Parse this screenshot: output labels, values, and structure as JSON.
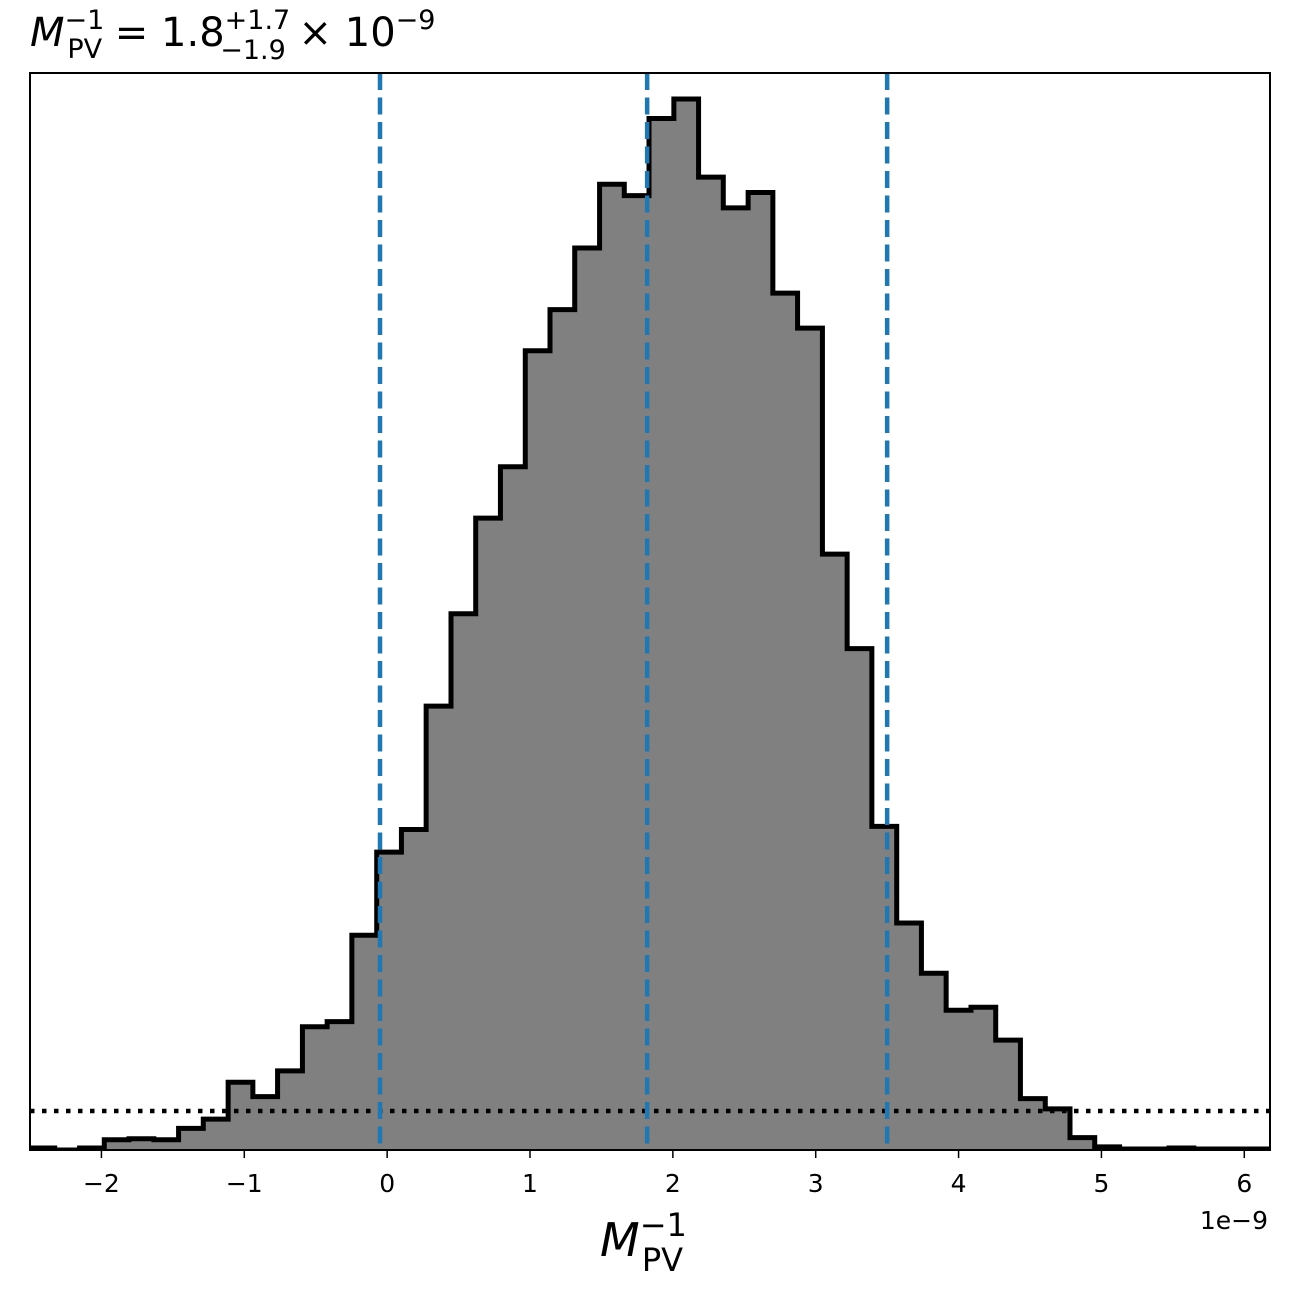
{
  "chart_data": {
    "type": "histogram",
    "title": {
      "symbol": "M",
      "symbol_sub": "PV",
      "symbol_sup": "−1",
      "eq": " = ",
      "median": "1.8",
      "err_plus": "+1.7",
      "err_minus": "−1.9",
      "times": " × 10",
      "exp": "−9"
    },
    "xlabel": {
      "symbol": "M",
      "sub": "PV",
      "sup": "−1"
    },
    "xlim": [
      -2.5,
      6.18
    ],
    "ylim": [
      0,
      1023
    ],
    "x_scale_label": "1e−9",
    "x_ticks": [
      {
        "value": -2,
        "label": "−2"
      },
      {
        "value": -1,
        "label": "−1"
      },
      {
        "value": 0,
        "label": "0"
      },
      {
        "value": 1,
        "label": "1"
      },
      {
        "value": 2,
        "label": "2"
      },
      {
        "value": 3,
        "label": "3"
      },
      {
        "value": 4,
        "label": "4"
      },
      {
        "value": 5,
        "label": "5"
      },
      {
        "value": 6,
        "label": "6"
      }
    ],
    "bin_edges": [
      -2.5,
      -2.327,
      -2.153,
      -1.98,
      -1.807,
      -1.633,
      -1.46,
      -1.287,
      -1.113,
      -0.94,
      -0.767,
      -0.593,
      -0.42,
      -0.247,
      -0.073,
      0.1,
      0.273,
      0.447,
      0.62,
      0.793,
      0.967,
      1.14,
      1.313,
      1.487,
      1.66,
      1.833,
      2.007,
      2.18,
      2.353,
      2.527,
      2.7,
      2.873,
      3.047,
      3.22,
      3.393,
      3.567,
      3.74,
      3.913,
      4.087,
      4.26,
      4.433,
      4.607,
      4.78,
      4.953,
      5.127,
      5.3,
      5.473,
      5.647,
      5.82,
      5.993,
      6.18
    ],
    "counts": [
      2,
      0,
      2,
      10,
      11,
      10,
      21,
      30,
      66,
      52,
      77,
      120,
      125,
      209,
      290,
      312,
      432,
      522,
      615,
      665,
      778,
      818,
      878,
      940,
      929,
      1004,
      1023,
      947,
      917,
      932,
      834,
      800,
      580,
      488,
      315,
      221,
      172,
      136,
      139,
      107,
      50,
      40,
      12,
      3,
      1,
      1,
      2,
      1,
      1,
      1
    ],
    "median_line": 1.82,
    "lower_line": -0.05,
    "upper_line": 3.5,
    "threshold_level": 38,
    "fill_color": "#808080",
    "edge_color": "#000000",
    "vline_color": "#1f77b4",
    "hline_color": "#000000",
    "grid": false,
    "legend": false
  }
}
